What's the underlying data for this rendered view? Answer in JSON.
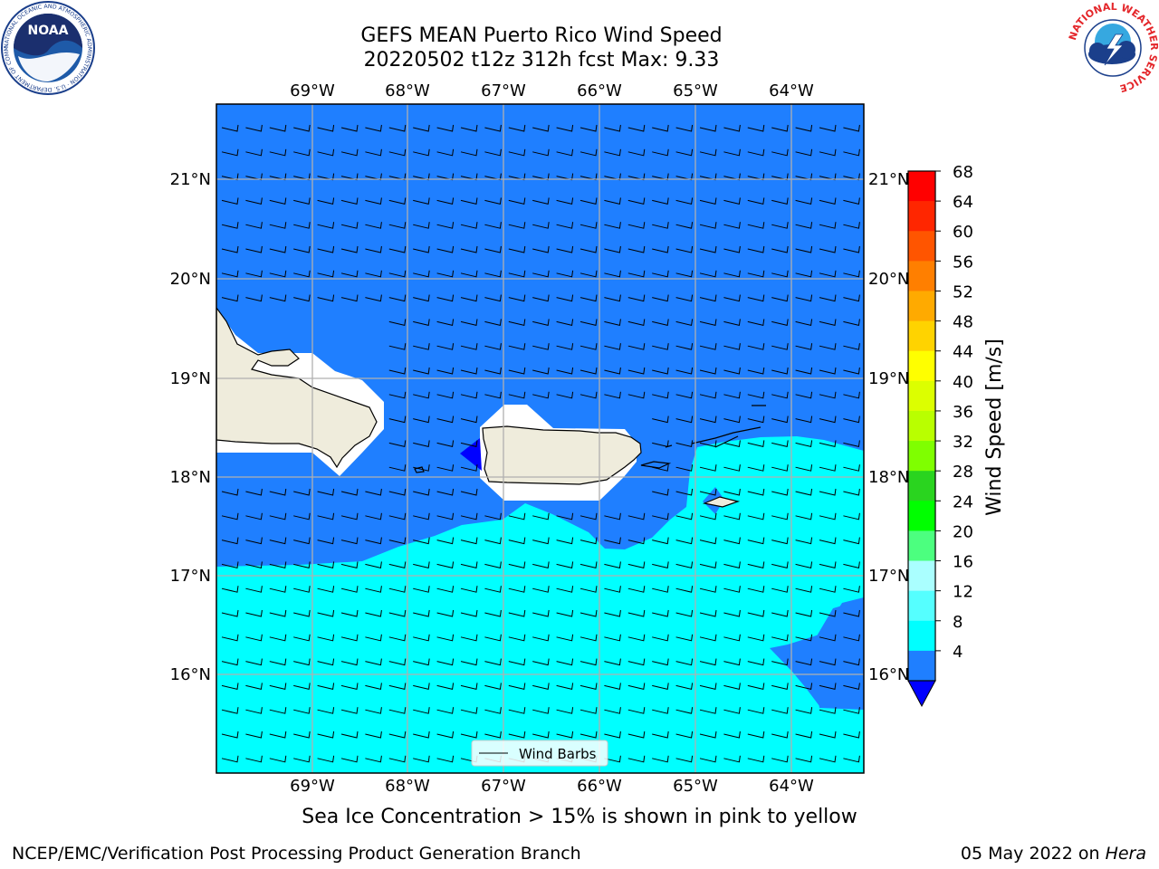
{
  "title": {
    "line1": "GEFS MEAN Puerto Rico Wind Speed",
    "line2": "20220502 t12z 312h fcst   Max: 9.33"
  },
  "map": {
    "lon_labels": [
      "69°W",
      "68°W",
      "67°W",
      "66°W",
      "65°W",
      "64°W"
    ],
    "lat_labels": [
      "21°N",
      "20°N",
      "19°N",
      "18°N",
      "17°N",
      "16°N"
    ],
    "legend_label": "Wind Barbs",
    "colors": {
      "band_4_8": "#1f7fff",
      "band_8_12": "#00ffff",
      "land": "#efecdc",
      "masked": "#ffffff",
      "below_4": "#0000ff"
    }
  },
  "colorbar": {
    "label": "Wind Speed [m/s]",
    "ticks": [
      "68",
      "64",
      "60",
      "56",
      "52",
      "48",
      "44",
      "40",
      "36",
      "32",
      "28",
      "24",
      "20",
      "16",
      "12",
      "8",
      "4"
    ],
    "colors": [
      "#ff0000",
      "#ff2600",
      "#ff5500",
      "#ff7f00",
      "#ffaa00",
      "#ffd300",
      "#ffff00",
      "#dcff00",
      "#b9ff00",
      "#7fff00",
      "#2ad41f",
      "#00ff00",
      "#4cff7f",
      "#aaffff",
      "#55ffff",
      "#00ffff",
      "#1f7fff"
    ],
    "under_color": "#0000ff"
  },
  "logos": {
    "noaa_text": "NOAA",
    "noaa_ring_text": "NATIONAL OCEANIC AND ATMOSPHERIC ADMINISTRATION · U.S. DEPARTMENT OF COMMERCE",
    "nws_ring_text": "NATIONAL WEATHER SERVICE"
  },
  "sea_ice_note": "Sea Ice Concentration > 15% is shown in pink to yellow",
  "footer": {
    "left": "NCEP/EMC/Verification Post Processing Product Generation Branch",
    "right_prefix": "05 May 2022 on ",
    "right_italic": "Hera"
  }
}
